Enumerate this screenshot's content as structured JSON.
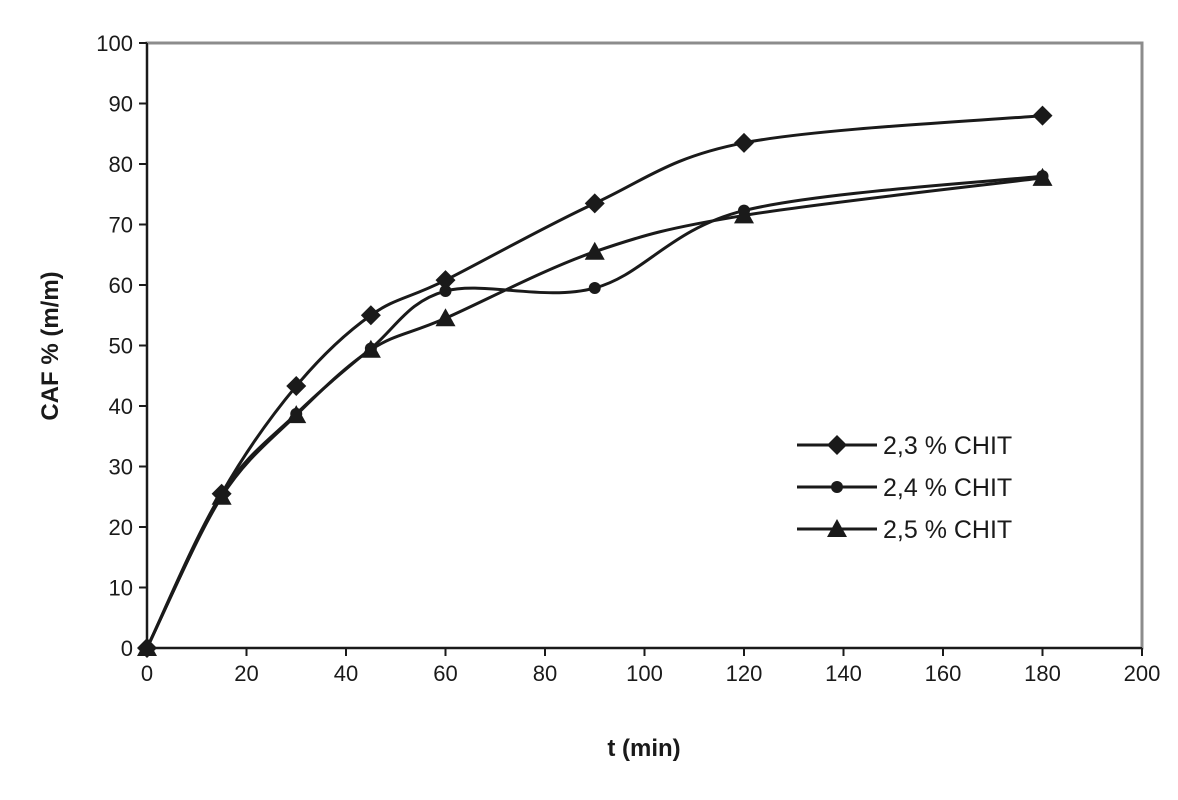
{
  "chart_data": {
    "type": "line",
    "title": "",
    "xlabel": "t (min)",
    "ylabel": "CAF % (m/m)",
    "xlim": [
      0,
      200
    ],
    "ylim": [
      0,
      100
    ],
    "x_ticks": [
      "0",
      "20",
      "40",
      "60",
      "80",
      "100",
      "120",
      "140",
      "160",
      "180",
      "200"
    ],
    "y_ticks": [
      "0",
      "10",
      "20",
      "30",
      "40",
      "50",
      "60",
      "70",
      "80",
      "90",
      "100"
    ],
    "grid": false,
    "legend_position": "right",
    "series": [
      {
        "name": "2,3 % CHIT",
        "marker": "diamond",
        "color": "#1a1a1a",
        "points": [
          [
            0,
            0
          ],
          [
            15,
            25.5
          ],
          [
            30,
            43.3
          ],
          [
            45,
            55
          ],
          [
            60,
            60.8
          ],
          [
            90,
            73.5
          ],
          [
            120,
            83.5
          ],
          [
            180,
            88
          ]
        ]
      },
      {
        "name": "2,4 % CHIT",
        "marker": "circle",
        "color": "#1a1a1a",
        "points": [
          [
            0,
            0
          ],
          [
            15,
            25.5
          ],
          [
            30,
            38.7
          ],
          [
            45,
            49.5
          ],
          [
            60,
            59
          ],
          [
            90,
            59.5
          ],
          [
            120,
            72.3
          ],
          [
            180,
            78
          ]
        ]
      },
      {
        "name": "2,5 % CHIT",
        "marker": "triangle",
        "color": "#1a1a1a",
        "points": [
          [
            0,
            0
          ],
          [
            15,
            25
          ],
          [
            30,
            38.5
          ],
          [
            45,
            49.3
          ],
          [
            60,
            54.5
          ],
          [
            90,
            65.5
          ],
          [
            120,
            71.5
          ],
          [
            180,
            77.7
          ]
        ]
      }
    ]
  }
}
